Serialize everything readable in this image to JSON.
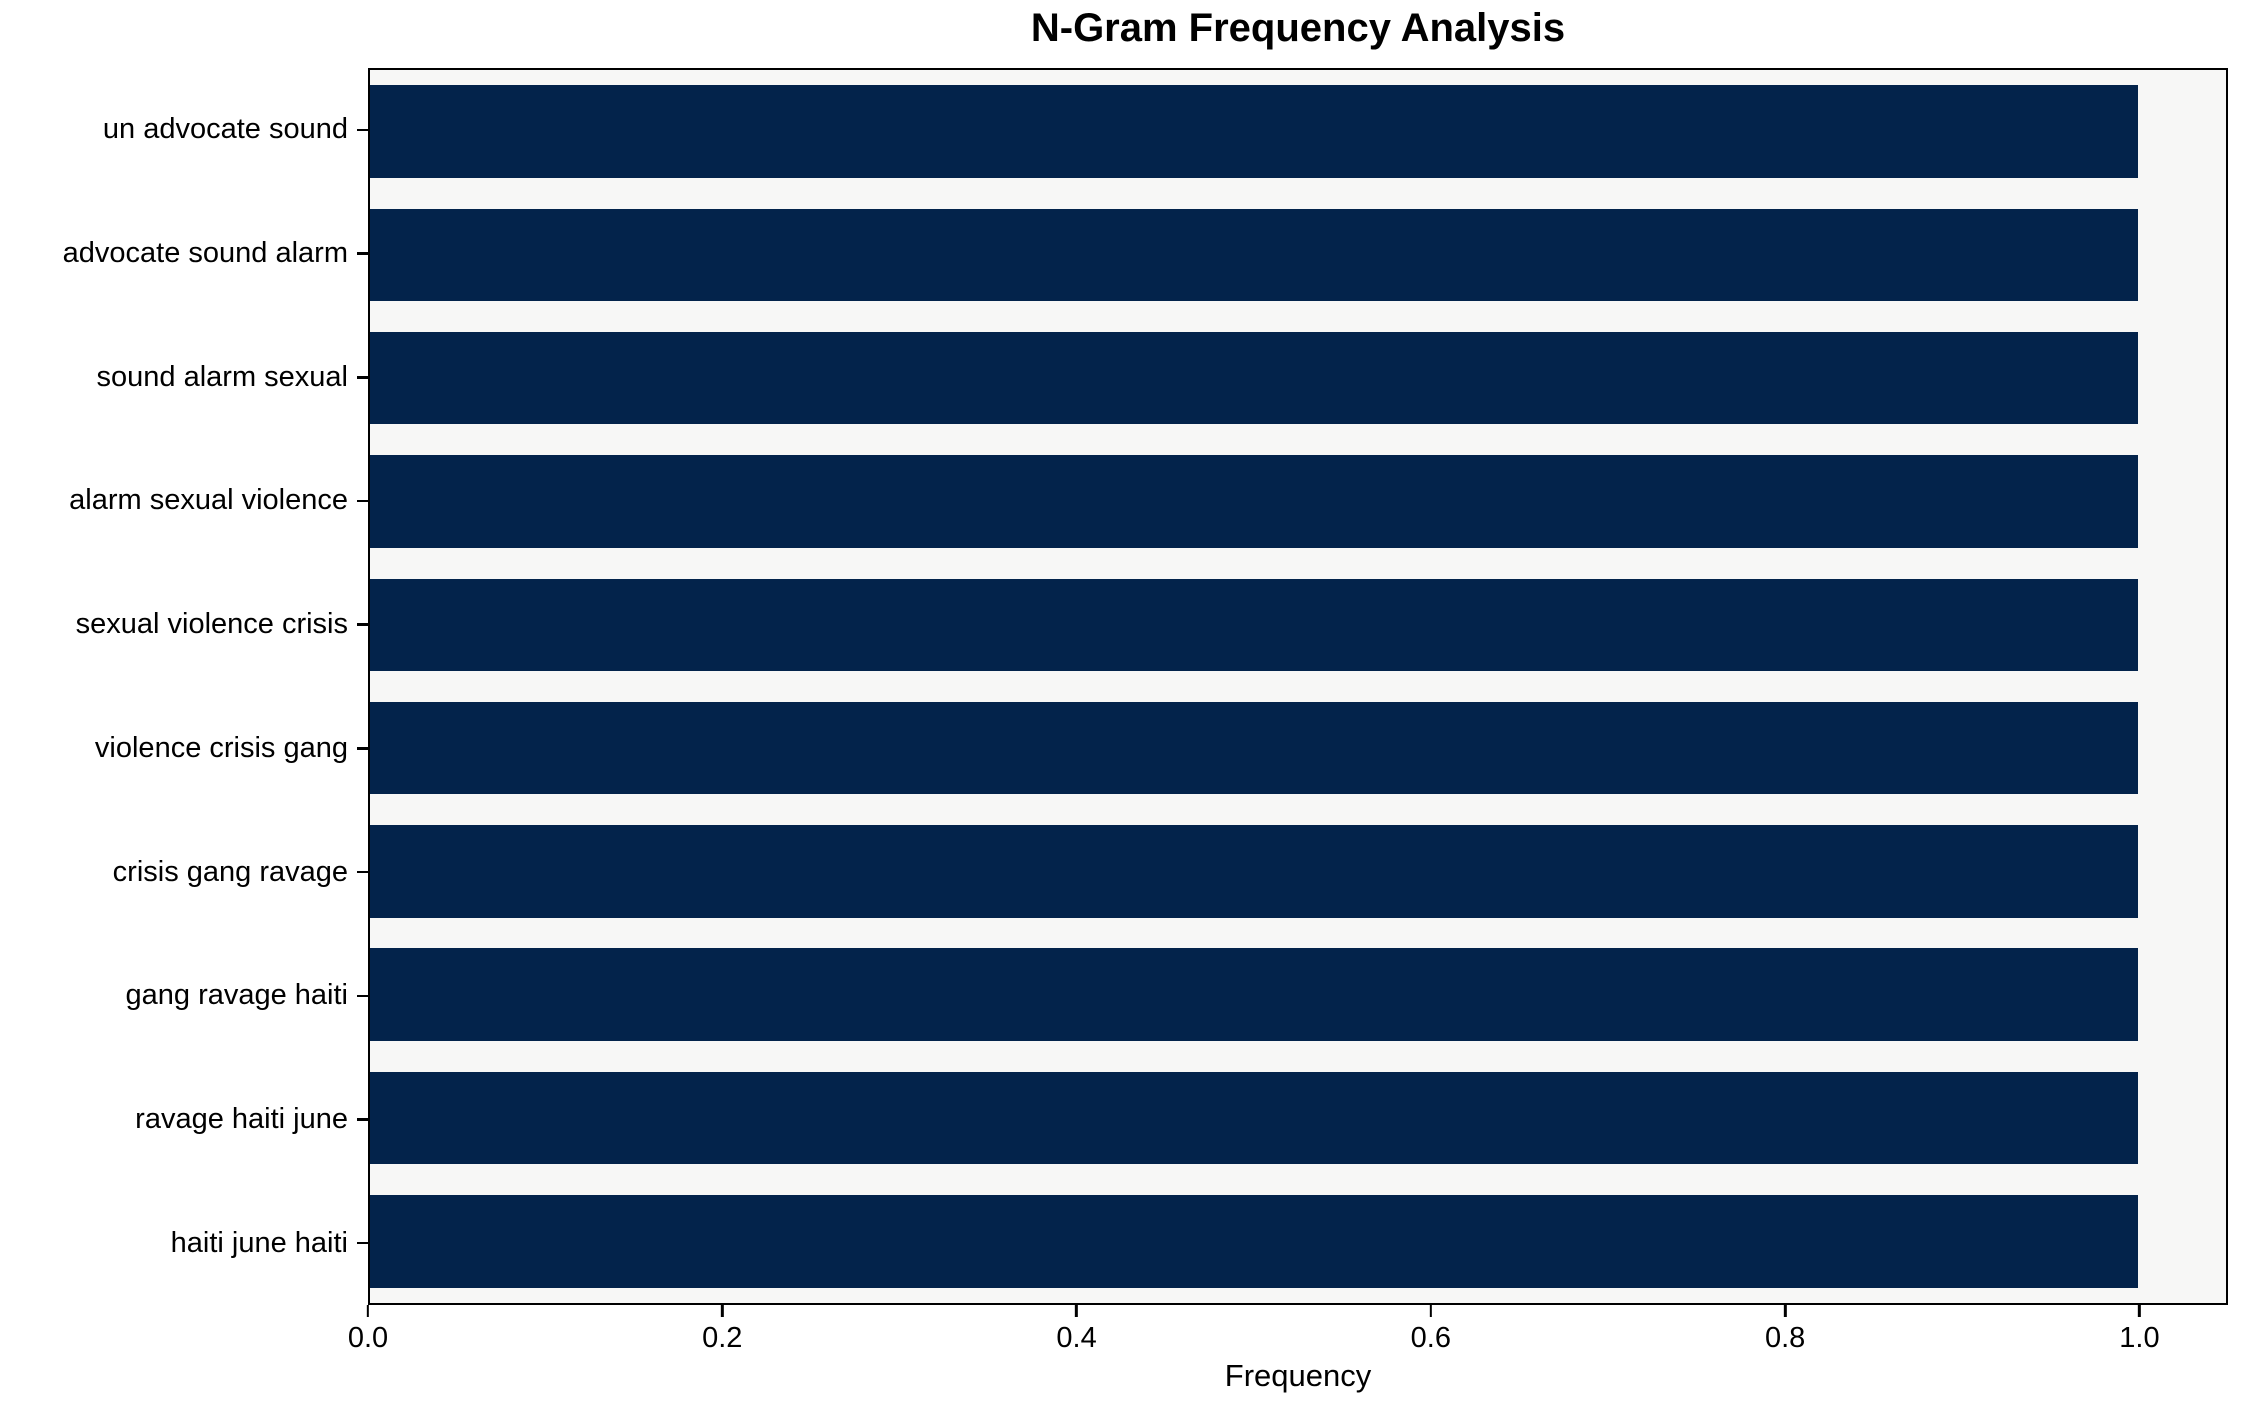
{
  "chart_data": {
    "type": "bar",
    "orientation": "horizontal",
    "title": "N-Gram Frequency Analysis",
    "xlabel": "Frequency",
    "ylabel": "",
    "categories": [
      "un advocate sound",
      "advocate sound alarm",
      "sound alarm sexual",
      "alarm sexual violence",
      "sexual violence crisis",
      "violence crisis gang",
      "crisis gang ravage",
      "gang ravage haiti",
      "ravage haiti june",
      "haiti june haiti"
    ],
    "values": [
      1.0,
      1.0,
      1.0,
      1.0,
      1.0,
      1.0,
      1.0,
      1.0,
      1.0,
      1.0
    ],
    "xlim": [
      0,
      1.05
    ],
    "xticks": [
      0.0,
      0.2,
      0.4,
      0.6,
      0.8,
      1.0
    ],
    "xtick_labels": [
      "0.0",
      "0.2",
      "0.4",
      "0.6",
      "0.8",
      "1.0"
    ],
    "grid": false,
    "legend": false,
    "bar_color": "#03234b",
    "plot_background": "#f7f7f6",
    "figure_background": "#ffffff",
    "spine_color": "#000000"
  }
}
